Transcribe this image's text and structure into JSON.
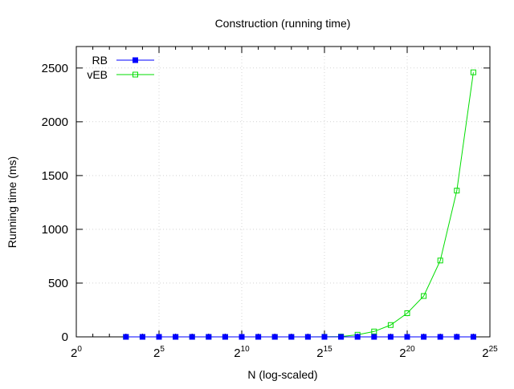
{
  "chart_data": {
    "type": "line",
    "title": "Construction (running time)",
    "xlabel": "N (log-scaled)",
    "ylabel": "Running time (ms)",
    "x_scale": "log2",
    "x_tick_base": "2",
    "x_tick_exponents": [
      "0",
      "5",
      "10",
      "15",
      "20",
      "25"
    ],
    "xlim_exponent": [
      0,
      25
    ],
    "ylim": [
      0,
      2700
    ],
    "y_ticks": [
      "0",
      "500",
      "1000",
      "1500",
      "2000",
      "2500"
    ],
    "grid": true,
    "legend_position": "top-left",
    "x_exponents": [
      3,
      4,
      5,
      6,
      7,
      8,
      9,
      10,
      11,
      12,
      13,
      14,
      15,
      16,
      17,
      18,
      19,
      20,
      21,
      22,
      23,
      24
    ],
    "series": [
      {
        "name": "RB",
        "color": "#0000ff",
        "marker": "filled-square",
        "values": [
          0,
          0,
          0,
          0,
          0,
          0,
          0,
          0,
          0,
          0,
          0,
          0,
          0,
          0,
          0,
          0,
          0,
          0,
          0,
          0,
          0,
          0
        ]
      },
      {
        "name": "vEB",
        "color": "#00dd00",
        "marker": "open-square",
        "values": [
          0,
          0,
          0,
          0,
          0,
          0,
          0,
          0,
          0,
          0,
          0,
          0,
          1,
          3,
          20,
          50,
          110,
          220,
          380,
          710,
          1360,
          2460
        ]
      }
    ]
  }
}
